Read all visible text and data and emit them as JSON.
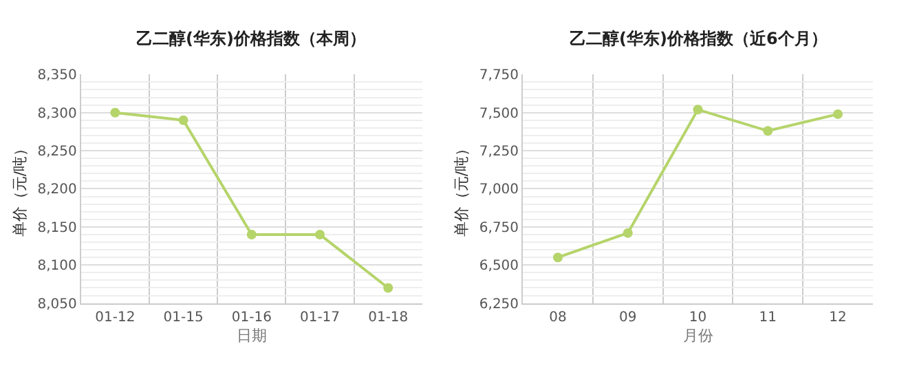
{
  "chart_data": [
    {
      "type": "line",
      "title": "乙二醇(华东)价格指数（本周）",
      "xlabel": "日期",
      "ylabel": "单价（元/吨）",
      "categories": [
        "01-12",
        "01-15",
        "01-16",
        "01-17",
        "01-18"
      ],
      "series": [
        {
          "color": "#b5d46a",
          "values": [
            8300,
            8290,
            8140,
            8140,
            8070
          ]
        }
      ],
      "ylim": [
        8050,
        8350
      ],
      "yticks": [
        {
          "value": 8050,
          "label": "8,050"
        },
        {
          "value": 8100,
          "label": "8,100"
        },
        {
          "value": 8150,
          "label": "8,150"
        },
        {
          "value": 8200,
          "label": "8,200"
        },
        {
          "value": 8250,
          "label": "8,250"
        },
        {
          "value": 8300,
          "label": "8,300"
        },
        {
          "value": 8350,
          "label": "8,350"
        }
      ],
      "grid": true,
      "marker": "circle",
      "line_style": "solid"
    },
    {
      "type": "line",
      "title": "乙二醇(华东)价格指数（近6个月）",
      "xlabel": "月份",
      "ylabel": "单价（元/吨）",
      "categories": [
        "08",
        "09",
        "10",
        "11",
        "12"
      ],
      "series": [
        {
          "color": "#b5d46a",
          "values": [
            6550,
            6710,
            7520,
            7380,
            7490
          ]
        }
      ],
      "ylim": [
        6250,
        7750
      ],
      "yticks": [
        {
          "value": 6250,
          "label": "6,250"
        },
        {
          "value": 6500,
          "label": "6,500"
        },
        {
          "value": 6750,
          "label": "6,750"
        },
        {
          "value": 7000,
          "label": "7,000"
        },
        {
          "value": 7250,
          "label": "7,250"
        },
        {
          "value": 7500,
          "label": "7,500"
        },
        {
          "value": 7750,
          "label": "7,750"
        }
      ],
      "grid": true,
      "marker": "circle",
      "line_style": "solid"
    }
  ]
}
